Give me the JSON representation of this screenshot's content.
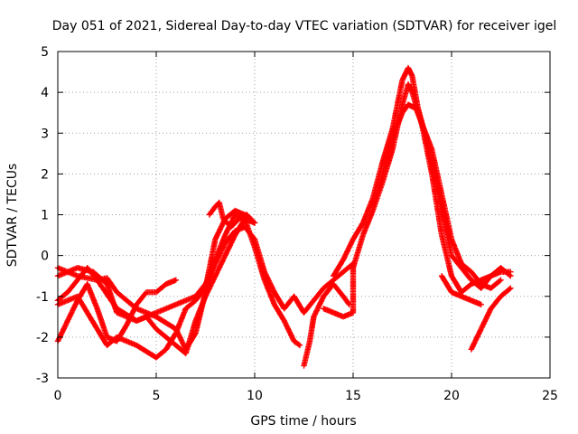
{
  "chart_data": {
    "type": "scatter",
    "title": "Day 051 of 2021, Sidereal Day-to-day VTEC variation (SDTVAR) for receiver igel",
    "xlabel": "GPS time / hours",
    "ylabel": "SDTVAR / TECUs",
    "xlim": [
      0,
      25
    ],
    "ylim": [
      -3,
      5
    ],
    "xticks": [
      0,
      5,
      10,
      15,
      20,
      25
    ],
    "yticks": [
      -3,
      -2,
      -1,
      0,
      1,
      2,
      3,
      4,
      5
    ],
    "grid": true,
    "marker": "+",
    "color": "#ff0000",
    "series": [
      {
        "name": "trace-1",
        "points": [
          [
            0,
            -0.3
          ],
          [
            1,
            -0.5
          ],
          [
            2,
            -0.6
          ],
          [
            2.5,
            -0.55
          ],
          [
            3,
            -0.9
          ],
          [
            4,
            -1.3
          ],
          [
            5,
            -1.5
          ],
          [
            6,
            -1.8
          ],
          [
            6.5,
            -2.3
          ],
          [
            7,
            -1.9
          ],
          [
            7.5,
            -0.9
          ],
          [
            8,
            -0.1
          ],
          [
            8.5,
            0.5
          ],
          [
            9,
            1.0
          ],
          [
            9.5,
            0.9
          ],
          [
            10,
            0.2
          ],
          [
            10.5,
            -0.6
          ],
          [
            11,
            -1.2
          ],
          [
            11.5,
            -1.6
          ],
          [
            12,
            -2.1
          ],
          [
            12.3,
            -2.2
          ]
        ]
      },
      {
        "name": "trace-2",
        "points": [
          [
            0,
            -0.5
          ],
          [
            1,
            -0.3
          ],
          [
            1.8,
            -0.4
          ],
          [
            2.5,
            -0.7
          ],
          [
            3,
            -1.4
          ],
          [
            4,
            -1.6
          ],
          [
            4.5,
            -1.5
          ],
          [
            5,
            -1.8
          ],
          [
            6,
            -2.2
          ],
          [
            6.5,
            -2.4
          ],
          [
            7,
            -1.6
          ],
          [
            7.5,
            -1.0
          ],
          [
            8,
            -0.5
          ],
          [
            8.5,
            0.0
          ],
          [
            9,
            0.5
          ],
          [
            9.5,
            0.9
          ],
          [
            10,
            0.8
          ]
        ]
      },
      {
        "name": "trace-3",
        "points": [
          [
            0,
            -1.1
          ],
          [
            0.5,
            -0.9
          ],
          [
            1,
            -0.6
          ],
          [
            1.5,
            -0.3
          ],
          [
            2,
            -0.6
          ],
          [
            3,
            -1.3
          ],
          [
            4,
            -1.6
          ],
          [
            5,
            -1.4
          ],
          [
            6,
            -1.2
          ],
          [
            7,
            -1.0
          ],
          [
            7.5,
            -0.7
          ],
          [
            8,
            -0.2
          ],
          [
            8.5,
            0.3
          ],
          [
            9,
            0.6
          ],
          [
            9.5,
            0.7
          ],
          [
            10,
            0.4
          ],
          [
            10.5,
            -0.4
          ],
          [
            11,
            -0.9
          ],
          [
            11.5,
            -1.3
          ],
          [
            12,
            -1.0
          ],
          [
            12.5,
            -1.4
          ],
          [
            13,
            -1.1
          ],
          [
            13.5,
            -0.8
          ],
          [
            14,
            -0.6
          ],
          [
            14.5,
            -0.4
          ],
          [
            15,
            -0.2
          ]
        ]
      },
      {
        "name": "trace-4",
        "points": [
          [
            0,
            -2.1
          ],
          [
            0.5,
            -1.6
          ],
          [
            1,
            -1.1
          ],
          [
            1.5,
            -0.7
          ],
          [
            2,
            -1.3
          ],
          [
            2.5,
            -2.0
          ],
          [
            3,
            -2.1
          ],
          [
            3.5,
            -1.7
          ],
          [
            4,
            -1.2
          ],
          [
            4.5,
            -0.9
          ],
          [
            5,
            -0.9
          ],
          [
            5.5,
            -0.7
          ],
          [
            6,
            -0.6
          ]
        ]
      },
      {
        "name": "trace-5",
        "points": [
          [
            0,
            -1.2
          ],
          [
            1,
            -1.0
          ],
          [
            2,
            -1.8
          ],
          [
            2.5,
            -2.2
          ],
          [
            3,
            -2.0
          ],
          [
            4,
            -2.2
          ],
          [
            5,
            -2.5
          ],
          [
            5.5,
            -2.3
          ],
          [
            6,
            -1.9
          ],
          [
            6.5,
            -1.3
          ],
          [
            7,
            -1.1
          ],
          [
            7.5,
            -0.8
          ],
          [
            8,
            0.4
          ],
          [
            8.5,
            0.9
          ],
          [
            9,
            1.1
          ],
          [
            9.5,
            1.0
          ]
        ]
      },
      {
        "name": "trace-6",
        "points": [
          [
            7.7,
            1.0
          ],
          [
            8,
            1.2
          ],
          [
            8.2,
            1.3
          ],
          [
            8.4,
            0.9
          ],
          [
            8.8,
            0.7
          ],
          [
            9.2,
            0.9
          ],
          [
            9.6,
            1.0
          ],
          [
            10,
            0.8
          ]
        ]
      },
      {
        "name": "trace-7",
        "points": [
          [
            12.5,
            -2.7
          ],
          [
            12.8,
            -2.1
          ],
          [
            13,
            -1.5
          ],
          [
            13.5,
            -1.0
          ],
          [
            14,
            -0.7
          ],
          [
            14.5,
            -1.0
          ],
          [
            14.8,
            -1.2
          ]
        ]
      },
      {
        "name": "trace-8",
        "points": [
          [
            13.5,
            -1.3
          ],
          [
            14,
            -1.4
          ],
          [
            14.5,
            -1.5
          ],
          [
            15,
            -1.4
          ],
          [
            15,
            -0.3
          ],
          [
            15.5,
            0.5
          ],
          [
            16,
            1.1
          ],
          [
            16.5,
            1.8
          ],
          [
            17,
            2.6
          ],
          [
            17.5,
            3.7
          ],
          [
            17.8,
            4.2
          ],
          [
            18,
            4.0
          ],
          [
            18.5,
            3.2
          ],
          [
            19,
            2.0
          ],
          [
            19.5,
            0.5
          ],
          [
            20,
            -0.5
          ],
          [
            20.5,
            -0.9
          ],
          [
            21,
            -0.7
          ],
          [
            21.5,
            -0.6
          ],
          [
            22,
            -0.5
          ],
          [
            22.5,
            -0.3
          ],
          [
            23,
            -0.5
          ]
        ]
      },
      {
        "name": "trace-9",
        "points": [
          [
            14,
            -0.5
          ],
          [
            14.5,
            -0.1
          ],
          [
            15,
            0.4
          ],
          [
            15.5,
            0.8
          ],
          [
            16,
            1.4
          ],
          [
            16.5,
            2.3
          ],
          [
            17,
            3.1
          ],
          [
            17.5,
            4.3
          ],
          [
            17.8,
            4.6
          ],
          [
            18,
            4.4
          ],
          [
            18.3,
            3.6
          ],
          [
            18.7,
            2.9
          ],
          [
            19,
            2.2
          ],
          [
            19.5,
            1.1
          ],
          [
            20,
            0.0
          ],
          [
            20.5,
            -0.3
          ],
          [
            21,
            -0.6
          ],
          [
            21.5,
            -0.8
          ],
          [
            22,
            -0.5
          ],
          [
            22.5,
            -0.4
          ],
          [
            23,
            -0.4
          ]
        ]
      },
      {
        "name": "trace-10",
        "points": [
          [
            16,
            1.2
          ],
          [
            16.5,
            2.0
          ],
          [
            17,
            2.9
          ],
          [
            17.5,
            3.5
          ],
          [
            17.8,
            3.7
          ],
          [
            18.2,
            3.6
          ],
          [
            18.6,
            3.1
          ],
          [
            19,
            2.6
          ],
          [
            19.5,
            1.5
          ],
          [
            20,
            0.4
          ],
          [
            20.5,
            -0.2
          ],
          [
            21,
            -0.4
          ],
          [
            21.5,
            -0.7
          ],
          [
            22,
            -0.8
          ],
          [
            22.5,
            -0.6
          ]
        ]
      },
      {
        "name": "trace-11",
        "points": [
          [
            19.5,
            -0.5
          ],
          [
            20,
            -0.9
          ],
          [
            20.5,
            -1.0
          ],
          [
            21,
            -1.1
          ],
          [
            21.5,
            -1.2
          ]
        ]
      },
      {
        "name": "trace-12",
        "points": [
          [
            21,
            -2.3
          ],
          [
            21.5,
            -1.8
          ],
          [
            22,
            -1.3
          ],
          [
            22.5,
            -1.0
          ],
          [
            23,
            -0.8
          ]
        ]
      }
    ]
  }
}
